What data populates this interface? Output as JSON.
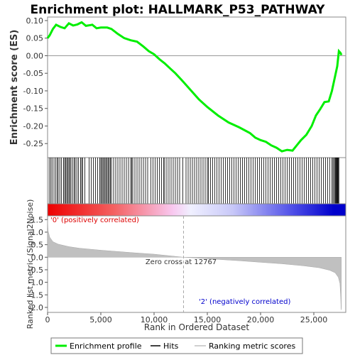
{
  "chart_data": [
    {
      "type": "line",
      "title": "Enrichment plot: HALLMARK_P53_PATHWAY",
      "ylabel": "Enrichment score (ES)",
      "xlim": [
        0,
        28000
      ],
      "ylim": [
        -0.29,
        0.11
      ],
      "yticks": [
        0.1,
        0.05,
        0.0,
        -0.05,
        -0.1,
        -0.15,
        -0.2,
        -0.25
      ],
      "ytick_labels": [
        "0.10",
        "0.05",
        "0.00",
        "-0.05",
        "-0.10",
        "-0.15",
        "-0.20",
        "-0.25"
      ],
      "grid": false,
      "series": [
        {
          "name": "Enrichment profile",
          "color": "#00ee00",
          "points": [
            [
              0,
              0.05
            ],
            [
              200,
              0.058
            ],
            [
              500,
              0.076
            ],
            [
              800,
              0.088
            ],
            [
              1200,
              0.082
            ],
            [
              1600,
              0.078
            ],
            [
              2000,
              0.092
            ],
            [
              2400,
              0.086
            ],
            [
              2800,
              0.089
            ],
            [
              3200,
              0.095
            ],
            [
              3600,
              0.085
            ],
            [
              4200,
              0.088
            ],
            [
              4600,
              0.078
            ],
            [
              5000,
              0.08
            ],
            [
              5600,
              0.08
            ],
            [
              6000,
              0.076
            ],
            [
              6600,
              0.062
            ],
            [
              7200,
              0.05
            ],
            [
              7800,
              0.044
            ],
            [
              8400,
              0.04
            ],
            [
              9000,
              0.026
            ],
            [
              9500,
              0.013
            ],
            [
              10000,
              0.004
            ],
            [
              10500,
              -0.01
            ],
            [
              11000,
              -0.022
            ],
            [
              11500,
              -0.036
            ],
            [
              12000,
              -0.05
            ],
            [
              12767,
              -0.075
            ],
            [
              13500,
              -0.1
            ],
            [
              14200,
              -0.124
            ],
            [
              15000,
              -0.146
            ],
            [
              16000,
              -0.17
            ],
            [
              17000,
              -0.19
            ],
            [
              18000,
              -0.204
            ],
            [
              19000,
              -0.22
            ],
            [
              19500,
              -0.233
            ],
            [
              20000,
              -0.24
            ],
            [
              20500,
              -0.245
            ],
            [
              21000,
              -0.255
            ],
            [
              21500,
              -0.262
            ],
            [
              22000,
              -0.272
            ],
            [
              22500,
              -0.268
            ],
            [
              23000,
              -0.27
            ],
            [
              23400,
              -0.255
            ],
            [
              23800,
              -0.24
            ],
            [
              24300,
              -0.225
            ],
            [
              24800,
              -0.2
            ],
            [
              25200,
              -0.17
            ],
            [
              25600,
              -0.152
            ],
            [
              26000,
              -0.132
            ],
            [
              26400,
              -0.13
            ],
            [
              26700,
              -0.1
            ],
            [
              27000,
              -0.058
            ],
            [
              27200,
              -0.03
            ],
            [
              27350,
              0.013
            ],
            [
              27500,
              0.008
            ],
            [
              27600,
              0.002
            ]
          ]
        }
      ],
      "zero_line": 0.0
    },
    {
      "type": "hits",
      "legend_name": "Hits",
      "hit_color": "#000000",
      "positions": [
        150,
        300,
        420,
        600,
        750,
        900,
        1000,
        1150,
        1300,
        1500,
        1600,
        1700,
        1800,
        1900,
        2000,
        2100,
        2200,
        2350,
        2500,
        2600,
        2750,
        2900,
        3100,
        3200,
        3300,
        3500,
        3900,
        4100,
        4300,
        4500,
        4700,
        4900,
        5000,
        5100,
        5200,
        5300,
        5400,
        5500,
        5600,
        5700,
        5800,
        5900,
        6000,
        6200,
        6400,
        6600,
        6800,
        7000,
        7200,
        7400,
        7600,
        7800,
        7900,
        8000,
        8200,
        8400,
        8600,
        8800,
        9000,
        9200,
        9400,
        9700,
        9900,
        10100,
        10300,
        10500,
        10700,
        10900,
        11000,
        11200,
        11400,
        11600,
        11800,
        12000,
        12200,
        12400,
        12700,
        13000,
        13200,
        13400,
        13600,
        13800,
        14000,
        14200,
        14400,
        14600,
        14800,
        15000,
        15100,
        15300,
        15500,
        15700,
        15900,
        16100,
        16300,
        16500,
        16700,
        16900,
        17100,
        17300,
        17500,
        17700,
        17900,
        18100,
        18300,
        18500,
        18700,
        18900,
        19100,
        19300,
        19500,
        19700,
        19900,
        20100,
        20300,
        20500,
        20700,
        20900,
        21100,
        21300,
        21500,
        21700,
        21900,
        22100,
        22300,
        22500,
        22700,
        22900,
        23100,
        23300,
        23500,
        23700,
        23900,
        24100,
        24300,
        24500,
        24700,
        24900,
        25100,
        25300,
        25500,
        25700,
        25900,
        26100,
        26300,
        26500,
        26700,
        26800,
        26900,
        27000,
        27050,
        27100,
        27150,
        27200,
        27250,
        27300,
        27350
      ]
    },
    {
      "type": "area",
      "ylabel": "Ranked list metric (Signal2Noise)",
      "xlabel": "Rank in Ordered Dataset",
      "xlim": [
        0,
        28000
      ],
      "ylim": [
        -2.2,
        1.65
      ],
      "yticks": [
        1.5,
        1.0,
        0.5,
        0.0,
        -0.5,
        -1.0,
        -1.5,
        -2.0
      ],
      "ytick_labels": [
        "1.5",
        "1.0",
        "0.5",
        "0.0",
        "-0.5",
        "-1.0",
        "-1.5",
        "-2.0"
      ],
      "xticks": [
        0,
        5000,
        10000,
        15000,
        20000,
        25000
      ],
      "xtick_labels": [
        "0",
        "5,000",
        "10,000",
        "15,000",
        "20,000",
        "25,000"
      ],
      "fill_color": "#c0c0c0",
      "points": [
        [
          0,
          1.5
        ],
        [
          50,
          1.05
        ],
        [
          200,
          0.8
        ],
        [
          500,
          0.62
        ],
        [
          1000,
          0.52
        ],
        [
          2000,
          0.42
        ],
        [
          3000,
          0.36
        ],
        [
          5000,
          0.28
        ],
        [
          8000,
          0.18
        ],
        [
          10000,
          0.12
        ],
        [
          12767,
          0.0
        ],
        [
          15000,
          -0.06
        ],
        [
          18000,
          -0.14
        ],
        [
          20000,
          -0.2
        ],
        [
          22000,
          -0.26
        ],
        [
          24000,
          -0.34
        ],
        [
          25500,
          -0.42
        ],
        [
          26500,
          -0.52
        ],
        [
          27000,
          -0.62
        ],
        [
          27300,
          -0.8
        ],
        [
          27450,
          -1.05
        ],
        [
          27530,
          -1.6
        ],
        [
          27560,
          -2.05
        ],
        [
          27580,
          -2.1
        ]
      ],
      "annotations": {
        "positive": "'0' (positively correlated)",
        "negative": "'2' (negatively correlated)",
        "zero_cross": "Zero cross at 12767"
      },
      "zero_cross_rank": 12767
    }
  ],
  "legend": {
    "items": [
      {
        "label": "Enrichment profile",
        "color": "#00ee00"
      },
      {
        "label": "Hits",
        "color": "#000000"
      },
      {
        "label": "Ranking metric scores",
        "color": "#c0c0c0"
      }
    ]
  }
}
